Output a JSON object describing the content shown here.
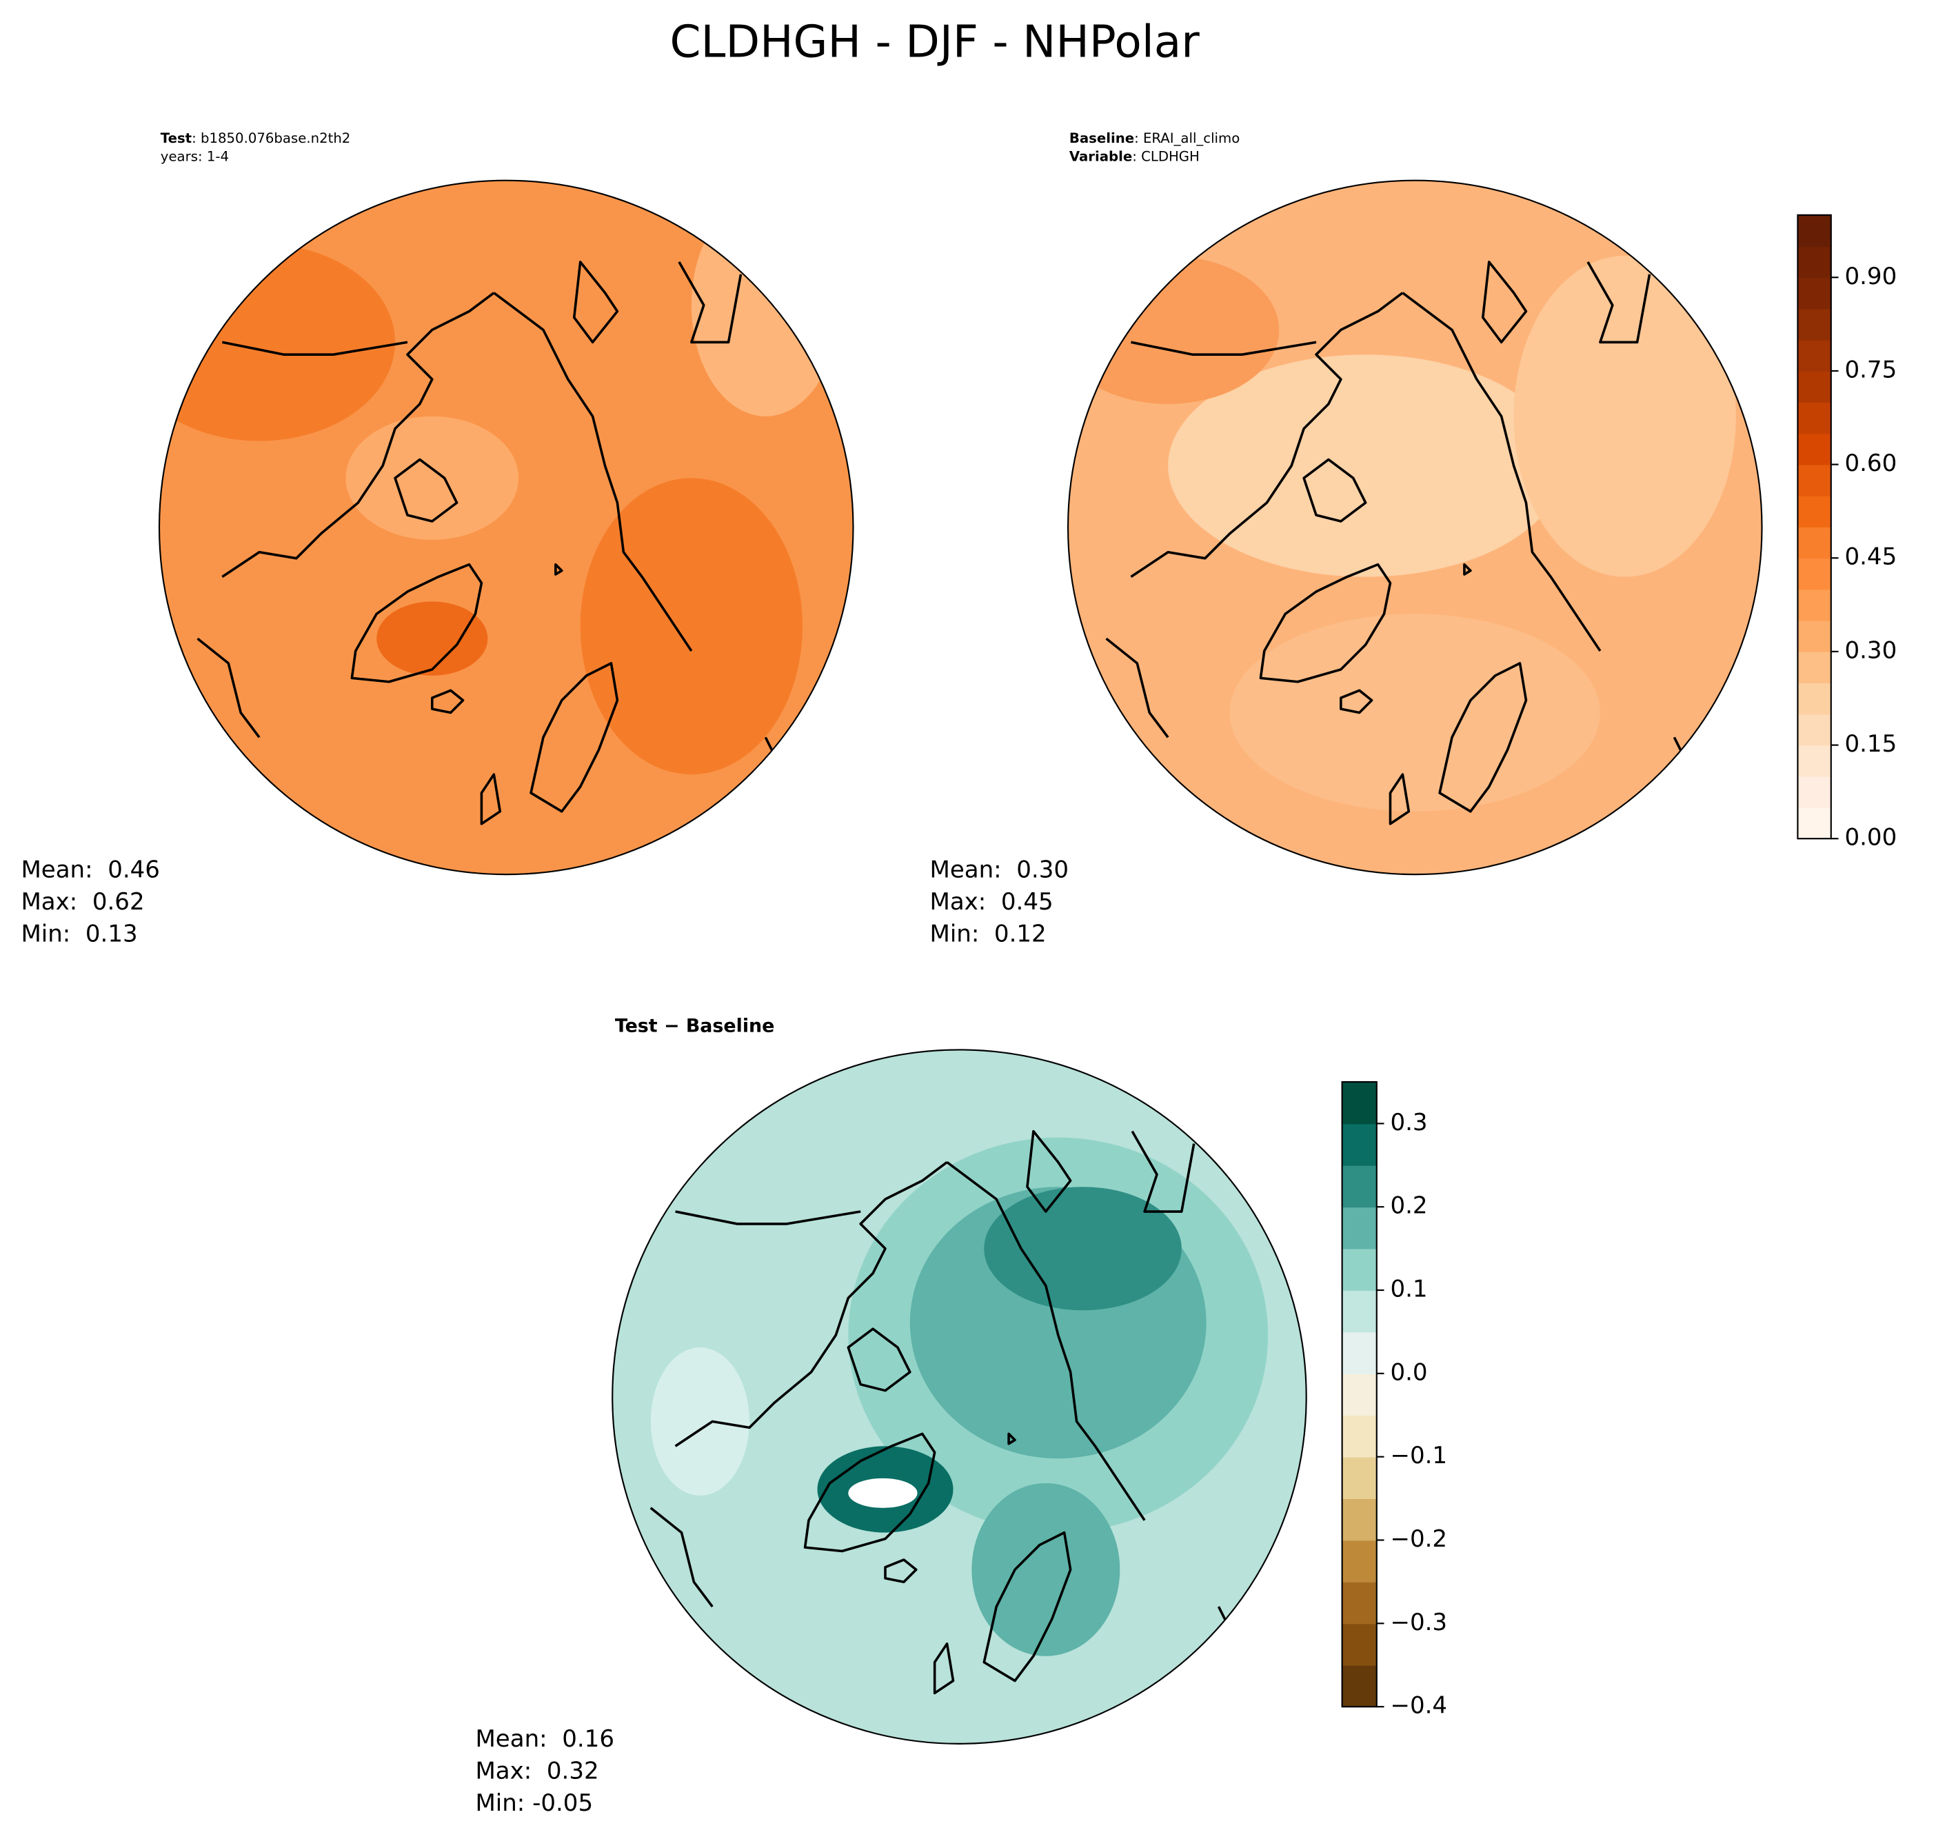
{
  "title": "CLDHGH - DJF - NHPolar",
  "chart_data": [
    {
      "type": "polar-contour",
      "label_bold": "Test",
      "label": ": b1850.076base.n2th2",
      "label2": "years: 1-4",
      "stats": [
        "Mean:  0.46",
        "Max:  0.62",
        "Min:  0.13"
      ]
    },
    {
      "type": "polar-contour",
      "label_bold": "Baseline",
      "label": ": ERAI_all_climo",
      "label2_bold": "Variable",
      "label2": ": CLDHGH",
      "stats": [
        "Mean:  0.30",
        "Max:  0.45",
        "Min:  0.12"
      ],
      "colorbar": {
        "clim": [
          0,
          1.0
        ],
        "cticks": [
          {
            "value": 0,
            "label": "0.00"
          },
          0.15,
          {
            "value": 0.3,
            "label": "0.30"
          },
          0.45,
          {
            "value": 0.6,
            "label": "0.60"
          },
          0.75,
          {
            "value": 0.9,
            "label": "0.90"
          }
        ],
        "colors": [
          "#fff5eb",
          "#feede0",
          "#fee6ce",
          "#fddbb8",
          "#fdd0a2",
          "#fdbf86",
          "#fdae6b",
          "#fd9e54",
          "#fd8d3c",
          "#f87f2c",
          "#f16913",
          "#e75c0c",
          "#d94801",
          "#c54102",
          "#b03902",
          "#a23503",
          "#8f2f03",
          "#7f2704",
          "#732304",
          "#661f04"
        ]
      }
    },
    {
      "type": "polar-contour",
      "label_bold": "Test − Baseline",
      "stats": [
        "Mean:  0.16",
        "Max:  0.32",
        "Min: -0.05"
      ],
      "colorbar": {
        "clim": [
          -0.4,
          0.35
        ],
        "cticks": [
          {
            "value": -0.4,
            "label": "−0.4"
          },
          {
            "value": -0.3,
            "label": "−0.3"
          },
          {
            "value": -0.2,
            "label": "−0.2"
          },
          {
            "value": -0.1,
            "label": "−0.1"
          },
          {
            "value": 0,
            "label": "0.0"
          },
          0.1,
          0.2,
          0.3
        ],
        "colors": [
          "#643a0a",
          "#85500f",
          "#a3681f",
          "#be8a3a",
          "#d6b066",
          "#e7cf94",
          "#f3e6c0",
          "#f6efdd",
          "#e4f1ef",
          "#c2e6e0",
          "#92d3c8",
          "#5fb3a8",
          "#2f8f85",
          "#0a6e64",
          "#01503f"
        ]
      }
    }
  ]
}
